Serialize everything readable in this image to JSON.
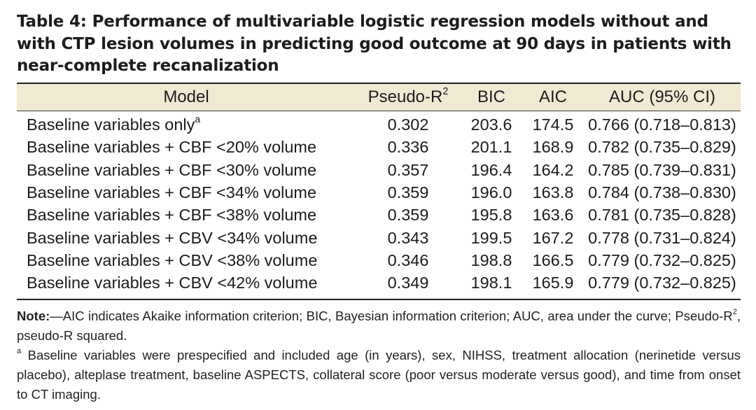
{
  "table": {
    "title": "Table 4: Performance of multivariable logistic regression models without and with CTP lesion volumes in predicting good outcome at 90 days in patients with near-complete recanalization",
    "columns": {
      "model": "Model",
      "pseudo_r2": "Pseudo-R",
      "pseudo_r2_sup": "2",
      "bic": "BIC",
      "aic": "AIC",
      "auc": "AUC (95% CI)"
    },
    "rows": [
      {
        "model": "Baseline variables only",
        "sup": "a",
        "pseudo_r2": "0.302",
        "bic": "203.6",
        "aic": "174.5",
        "auc": "0.766 (0.718–0.813)"
      },
      {
        "model": "Baseline variables + CBF <20% volume",
        "sup": "",
        "pseudo_r2": "0.336",
        "bic": "201.1",
        "aic": "168.9",
        "auc": "0.782 (0.735–0.829)"
      },
      {
        "model": "Baseline variables + CBF <30% volume",
        "sup": "",
        "pseudo_r2": "0.357",
        "bic": "196.4",
        "aic": "164.2",
        "auc": "0.785 (0.739–0.831)"
      },
      {
        "model": "Baseline variables + CBF <34% volume",
        "sup": "",
        "pseudo_r2": "0.359",
        "bic": "196.0",
        "aic": "163.8",
        "auc": "0.784 (0.738–0.830)"
      },
      {
        "model": "Baseline variables + CBF <38% volume",
        "sup": "",
        "pseudo_r2": "0.359",
        "bic": "195.8",
        "aic": "163.6",
        "auc": "0.781 (0.735–0.828)"
      },
      {
        "model": "Baseline variables + CBV <34% volume",
        "sup": "",
        "pseudo_r2": "0.343",
        "bic": "199.5",
        "aic": "167.2",
        "auc": "0.778 (0.731–0.824)"
      },
      {
        "model": "Baseline variables + CBV <38% volume",
        "sup": "",
        "pseudo_r2": "0.346",
        "bic": "198.8",
        "aic": "166.5",
        "auc": "0.779 (0.732–0.825)"
      },
      {
        "model": "Baseline variables + CBV <42% volume",
        "sup": "",
        "pseudo_r2": "0.349",
        "bic": "198.1",
        "aic": "165.9",
        "auc": "0.779 (0.732–0.825)"
      }
    ]
  },
  "notes": {
    "label": "Note:",
    "text_before": "—AIC indicates Akaike information criterion; BIC, Bayesian information criterion; AUC, area under the curve; Pseudo-R",
    "text_sup": "2",
    "text_after": ", pseudo-R squared.",
    "footnote_marker": "a",
    "footnote_text": " Baseline variables were prespecified and included age (in years), sex, NIHSS, treatment allocation (nerinetide versus placebo), alteplase treatment, baseline ASPECTS, collateral score (poor versus moderate versus good), and time from onset to CT imaging."
  },
  "colors": {
    "header_background": "#f1ead3",
    "text": "#1c1c1c",
    "rule": "#222222"
  }
}
